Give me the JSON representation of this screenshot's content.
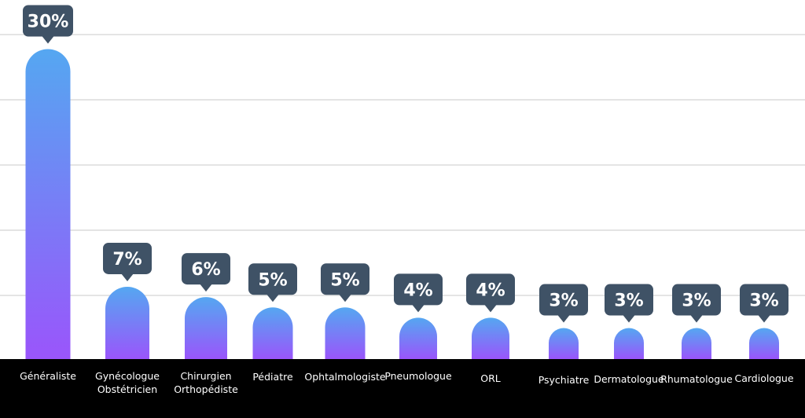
{
  "chart_data": {
    "type": "bar",
    "categories": [
      [
        "Généraliste"
      ],
      [
        "Gynécologue",
        "Obstétricien"
      ],
      [
        "Chirurgien",
        "Orthopédiste"
      ],
      [
        "Pédiatre"
      ],
      [
        "Ophtalmologiste"
      ],
      [
        "Pneumologue"
      ],
      [
        "ORL"
      ],
      [
        "Psychiatre"
      ],
      [
        "Dermatologue"
      ],
      [
        "Rhumatologue"
      ],
      [
        "Cardiologue"
      ]
    ],
    "values": [
      30,
      7,
      6,
      5,
      5,
      4,
      4,
      3,
      3,
      3,
      3
    ],
    "value_labels": [
      "30%",
      "7%",
      "6%",
      "5%",
      "5%",
      "4%",
      "4%",
      "3%",
      "3%",
      "3%",
      "3%"
    ],
    "unit": "%",
    "grid": true,
    "legend": "none",
    "colors": {
      "bar_top": "#55a7f1",
      "bar_bottom": "#9a55fb",
      "label_bubble": "#3f5266",
      "label_text": "#ffffff",
      "axis_band": "#000000",
      "axis_text": "#ffffff",
      "gridline": "#e4e4e4",
      "background": "#ffffff"
    }
  }
}
